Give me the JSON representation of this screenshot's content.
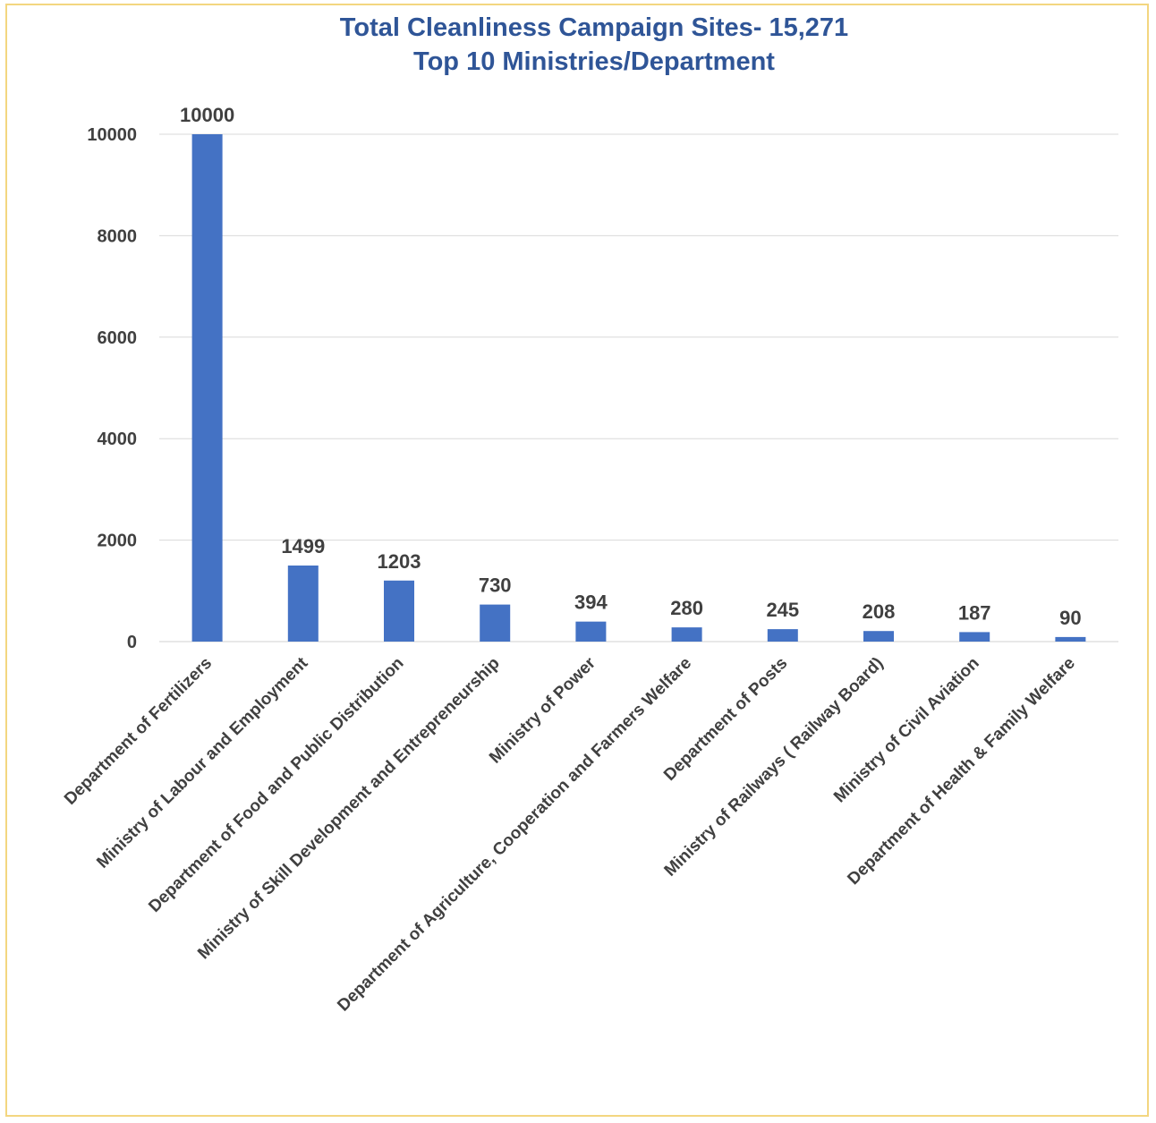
{
  "chart_data": {
    "type": "bar",
    "title_line1": "Total Cleanliness Campaign Sites- 15,271",
    "title_line2": "Top 10 Ministries/Department",
    "xlabel": "",
    "ylabel": "",
    "ylim": [
      0,
      10000
    ],
    "yticks": [
      "0",
      "2000",
      "4000",
      "6000",
      "8000",
      "10000"
    ],
    "grid": "horizontal",
    "legend": "none",
    "bar_color": "#4472c4",
    "categories": [
      "Department of Fertilizers",
      "Ministry of Labour and Employment",
      "Department of Food and Public Distribution",
      "Ministry of Skill Development and Entrepreneurship",
      "Ministry of Power",
      "Department of Agriculture, Cooperation and Farmers Welfare",
      "Department of Posts",
      "Ministry of Railways ( Railway Board)",
      "Ministry of Civil Aviation",
      "Department of Health & Family Welfare"
    ],
    "values": [
      10000,
      1499,
      1203,
      730,
      394,
      280,
      245,
      208,
      187,
      90
    ],
    "data_labels": [
      "10000",
      "1499",
      "1203",
      "730",
      "394",
      "280",
      "245",
      "208",
      "187",
      "90"
    ]
  }
}
